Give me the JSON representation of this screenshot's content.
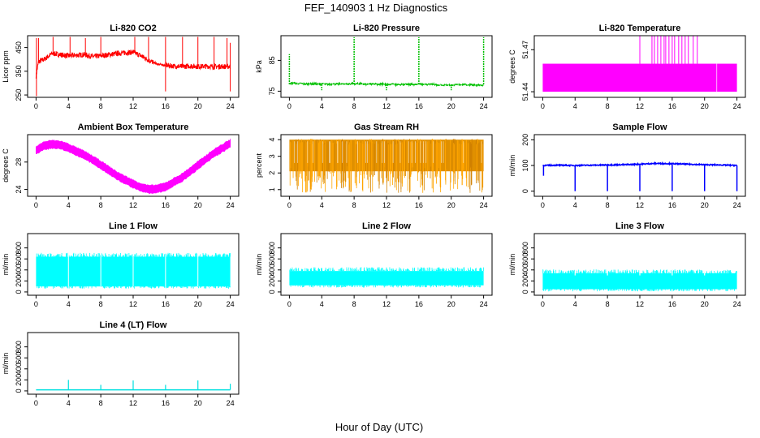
{
  "figure": {
    "title": "FEF_140903  1 Hz Diagnostics",
    "xlabel": "Hour of Day (UTC)"
  },
  "chart_data": [
    {
      "id": "co2",
      "type": "line",
      "title": "Li-820 CO2",
      "ylabel": "Licor ppm",
      "color": "#ff0000",
      "xlim": [
        0,
        24
      ],
      "xticks": [
        0,
        4,
        8,
        12,
        16,
        20,
        24
      ],
      "ylim": [
        240,
        500
      ],
      "yticks": [
        250,
        350,
        450
      ],
      "series": [
        {
          "x": [
            0,
            0.3,
            1,
            2,
            3,
            4,
            5,
            6,
            7,
            8,
            9,
            10,
            11,
            12,
            13,
            14,
            15,
            16,
            17,
            18,
            19,
            20,
            21,
            22,
            23,
            24
          ],
          "y": [
            330,
            390,
            400,
            425,
            420,
            415,
            418,
            420,
            412,
            415,
            420,
            425,
            428,
            430,
            415,
            395,
            380,
            375,
            372,
            370,
            372,
            370,
            371,
            370,
            370,
            370
          ]
        }
      ]
    },
    {
      "id": "pressure",
      "type": "line",
      "title": "Li-820 Pressure",
      "ylabel": "kPa",
      "color": "#00c000",
      "xlim": [
        0,
        24
      ],
      "xticks": [
        0,
        4,
        8,
        12,
        16,
        20,
        24
      ],
      "ylim": [
        73,
        93
      ],
      "yticks": [
        75,
        85
      ],
      "series": [
        {
          "x": [
            0,
            1,
            2,
            4,
            6,
            8,
            10,
            12,
            14,
            16,
            18,
            20,
            22,
            24
          ],
          "y": [
            77.6,
            77.5,
            77.4,
            77.3,
            77.3,
            77.4,
            77.3,
            77.2,
            77.2,
            77.3,
            77.1,
            77.0,
            77.1,
            77.0
          ]
        }
      ]
    },
    {
      "id": "licor_temp",
      "type": "area",
      "title": "Li-820 Temperature",
      "ylabel": "degrees C",
      "color": "#ff00ff",
      "xlim": [
        0,
        24
      ],
      "xticks": [
        0,
        4,
        8,
        12,
        16,
        20,
        24
      ],
      "ylim": [
        51.436,
        51.48
      ],
      "yticks": [
        51.44,
        51.47
      ],
      "series": [
        {
          "x": [
            0,
            24
          ],
          "ymin": [
            51.44,
            51.44
          ],
          "ymax": [
            51.46,
            51.46
          ]
        }
      ]
    },
    {
      "id": "ambient_temp",
      "type": "line",
      "title": "Ambient Box Temperature",
      "ylabel": "degrees C",
      "color": "#ff00ff",
      "xlim": [
        0,
        24
      ],
      "xticks": [
        0,
        4,
        8,
        12,
        16,
        20,
        24
      ],
      "ylim": [
        23,
        32
      ],
      "yticks": [
        24,
        28
      ],
      "series": [
        {
          "x": [
            0,
            1,
            2,
            3,
            4,
            6,
            8,
            10,
            12,
            13,
            14,
            15,
            16,
            18,
            20,
            22,
            24
          ],
          "y": [
            29.7,
            30.4,
            30.6,
            30.5,
            30.1,
            29.0,
            27.6,
            26.0,
            24.8,
            24.3,
            24.0,
            24.1,
            24.4,
            25.7,
            27.5,
            29.3,
            30.7
          ]
        }
      ]
    },
    {
      "id": "gas_rh",
      "type": "area",
      "title": "Gas Stream RH",
      "ylabel": "percent",
      "color": "#ffb000",
      "xlim": [
        0,
        24
      ],
      "xticks": [
        0,
        4,
        8,
        12,
        16,
        20,
        24
      ],
      "ylim": [
        0.6,
        4.3
      ],
      "yticks": [
        1,
        2,
        3,
        4
      ],
      "series": [
        {
          "x": [
            0,
            24
          ],
          "ymin": [
            1.0,
            1.0
          ],
          "ymax": [
            4.0,
            4.0
          ]
        }
      ]
    },
    {
      "id": "sample_flow",
      "type": "line",
      "title": "Sample Flow",
      "ylabel": "ml/min",
      "color": "#0000ff",
      "xlim": [
        0,
        24
      ],
      "xticks": [
        0,
        4,
        8,
        12,
        16,
        20,
        24
      ],
      "ylim": [
        -20,
        220
      ],
      "yticks": [
        0,
        100,
        200
      ],
      "series": [
        {
          "x": [
            0,
            2,
            4,
            6,
            8,
            10,
            12,
            14,
            16,
            18,
            20,
            22,
            24
          ],
          "y": [
            100,
            101,
            100,
            101,
            102,
            103,
            105,
            108,
            107,
            105,
            103,
            102,
            100
          ]
        }
      ]
    },
    {
      "id": "line1_flow",
      "type": "area",
      "title": "Line 1 Flow",
      "ylabel": "ml/min",
      "color": "#00ffff",
      "xlim": [
        0,
        24
      ],
      "xticks": [
        0,
        4,
        8,
        12,
        16,
        20,
        24
      ],
      "ylim": [
        -60,
        1060
      ],
      "yticks": [
        0,
        200,
        400,
        600,
        800
      ],
      "series": [
        {
          "x": [
            0,
            24
          ],
          "ymin": [
            100,
            100
          ],
          "ymax": [
            680,
            680
          ]
        }
      ]
    },
    {
      "id": "line2_flow",
      "type": "area",
      "title": "Line 2 Flow",
      "ylabel": "ml/min",
      "color": "#00ffff",
      "xlim": [
        0,
        24
      ],
      "xticks": [
        0,
        4,
        8,
        12,
        16,
        20,
        24
      ],
      "ylim": [
        -60,
        1060
      ],
      "yticks": [
        0,
        200,
        400,
        600,
        800
      ],
      "series": [
        {
          "x": [
            0,
            24
          ],
          "ymin": [
            120,
            120
          ],
          "ymax": [
            420,
            420
          ]
        }
      ]
    },
    {
      "id": "line3_flow",
      "type": "area",
      "title": "Line 3 Flow",
      "ylabel": "ml/min",
      "color": "#00ffff",
      "xlim": [
        0,
        24
      ],
      "xticks": [
        0,
        4,
        8,
        12,
        16,
        20,
        24
      ],
      "ylim": [
        -60,
        1060
      ],
      "yticks": [
        0,
        200,
        400,
        600,
        800
      ],
      "series": [
        {
          "x": [
            0,
            24
          ],
          "ymin": [
            50,
            50
          ],
          "ymax": [
            380,
            380
          ]
        }
      ]
    },
    {
      "id": "line4_flow",
      "type": "line",
      "title": "Line 4 (LT) Flow",
      "ylabel": "ml/min",
      "color": "#00e0e0",
      "xlim": [
        0,
        24
      ],
      "xticks": [
        0,
        4,
        8,
        12,
        16,
        20,
        24
      ],
      "ylim": [
        -60,
        1060
      ],
      "yticks": [
        0,
        200,
        400,
        600,
        800
      ],
      "series": [
        {
          "x": [
            0,
            4,
            8,
            12,
            16,
            20,
            24
          ],
          "y": [
            20,
            20,
            20,
            20,
            20,
            20,
            20
          ]
        }
      ]
    }
  ]
}
